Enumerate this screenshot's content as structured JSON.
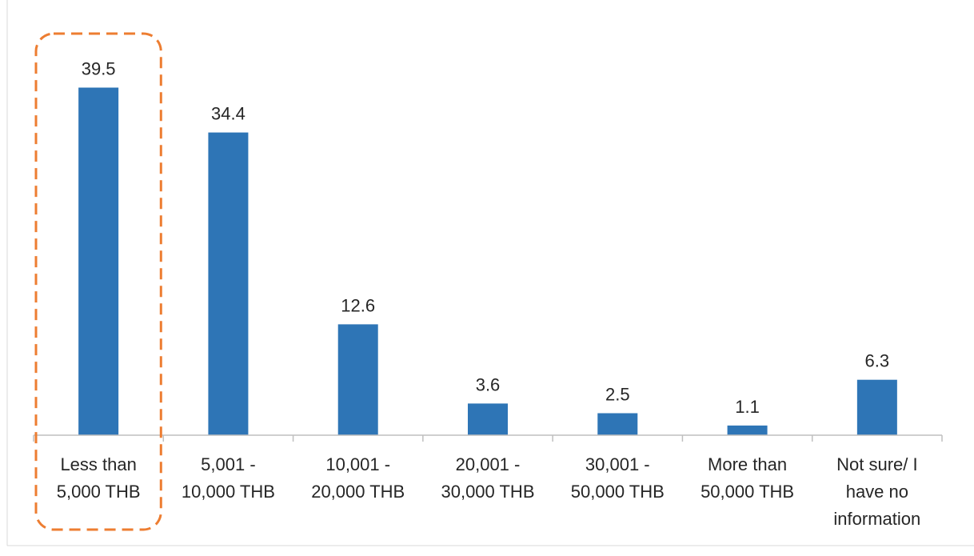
{
  "chart_data": {
    "type": "bar",
    "categories": [
      [
        "Less than",
        "5,000 THB"
      ],
      [
        "5,001 -",
        "10,000 THB"
      ],
      [
        "10,001 -",
        "20,000 THB"
      ],
      [
        "20,001 -",
        "30,000 THB"
      ],
      [
        "30,001 -",
        "50,000 THB"
      ],
      [
        "More than",
        "50,000 THB"
      ],
      [
        "Not sure/ I",
        "have no",
        "information"
      ]
    ],
    "values": [
      39.5,
      34.4,
      12.6,
      3.6,
      2.5,
      1.1,
      6.3
    ],
    "value_labels": [
      "39.5",
      "34.4",
      "12.6",
      "3.6",
      "2.5",
      "1.1",
      "6.3"
    ],
    "ylim": [
      0,
      42
    ],
    "grid": false,
    "bar_color": "#2E75B6",
    "highlight": {
      "category_index": 0,
      "style": "dashed-rounded-box",
      "color": "#ED7D31"
    }
  }
}
